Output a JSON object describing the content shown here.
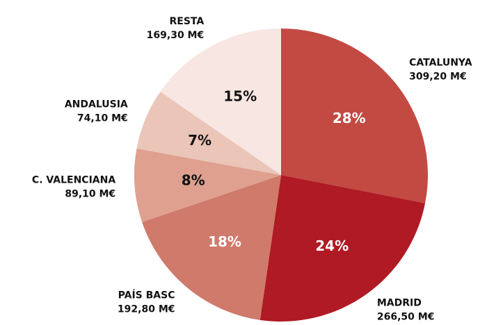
{
  "chart_data": {
    "type": "pie",
    "categories": [
      "CATALUNYA",
      "MADRID",
      "PAÍS BASC",
      "C. VALENCIANA",
      "ANDALUSIA",
      "RESTA"
    ],
    "values": [
      309.2,
      266.5,
      192.8,
      89.1,
      74.1,
      169.3
    ],
    "value_labels": [
      "309,20 M€",
      "266,50 M€",
      "192,80 M€",
      "89,10 M€",
      "74,10 M€",
      "169,30 M€"
    ],
    "percent_labels": [
      "28%",
      "24%",
      "18%",
      "8%",
      "7%",
      "15%"
    ],
    "colors": [
      "#c24a43",
      "#b01a24",
      "#cf7a6a",
      "#dfa090",
      "#eac5b8",
      "#f7e6e2"
    ],
    "percent_label_colors": [
      "#ffffff",
      "#ffffff",
      "#ffffff",
      "#111111",
      "#111111",
      "#111111"
    ]
  }
}
